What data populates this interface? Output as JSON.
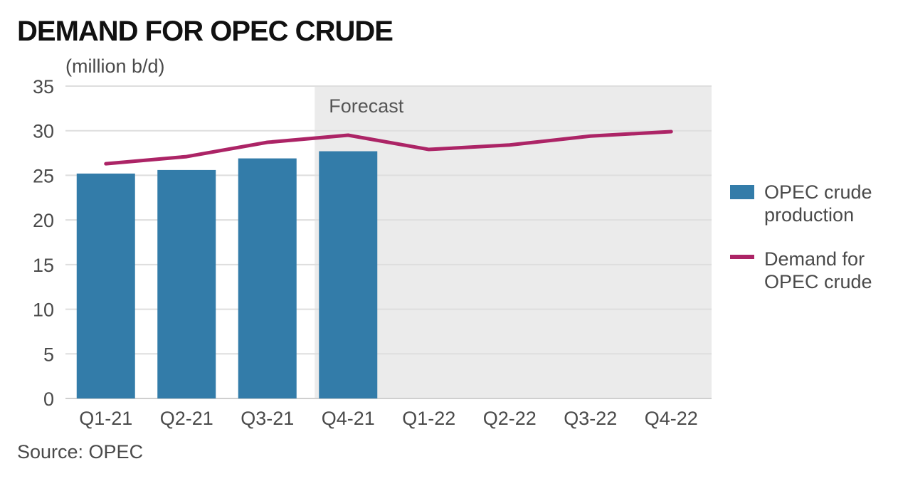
{
  "title": "DEMAND FOR OPEC CRUDE",
  "unit_label": "(million b/d)",
  "source": "Source: OPEC",
  "forecast_label": "Forecast",
  "colors": {
    "production": "#337ca9",
    "demand": "#ac2466",
    "forecast_shade": "#ebebeb",
    "grid": "#dedede"
  },
  "legend": [
    {
      "label": "OPEC crude production",
      "kind": "bar"
    },
    {
      "label": "Demand for OPEC crude",
      "kind": "line"
    }
  ],
  "chart_data": {
    "type": "bar",
    "categories": [
      "Q1-21",
      "Q2-21",
      "Q3-21",
      "Q4-21",
      "Q1-22",
      "Q2-22",
      "Q3-22",
      "Q4-22"
    ],
    "series": [
      {
        "name": "OPEC crude production",
        "type": "bar",
        "values": [
          25.2,
          25.6,
          26.9,
          27.7,
          null,
          null,
          null,
          null
        ]
      },
      {
        "name": "Demand for OPEC crude",
        "type": "line",
        "values": [
          26.3,
          27.1,
          28.7,
          29.5,
          27.9,
          28.4,
          29.4,
          29.9
        ]
      }
    ],
    "forecast_start": "Q4-21",
    "ylim": [
      0,
      35
    ],
    "yticks": [
      0,
      5,
      10,
      15,
      20,
      25,
      30,
      35
    ],
    "grid": true,
    "legend_position": "right"
  }
}
